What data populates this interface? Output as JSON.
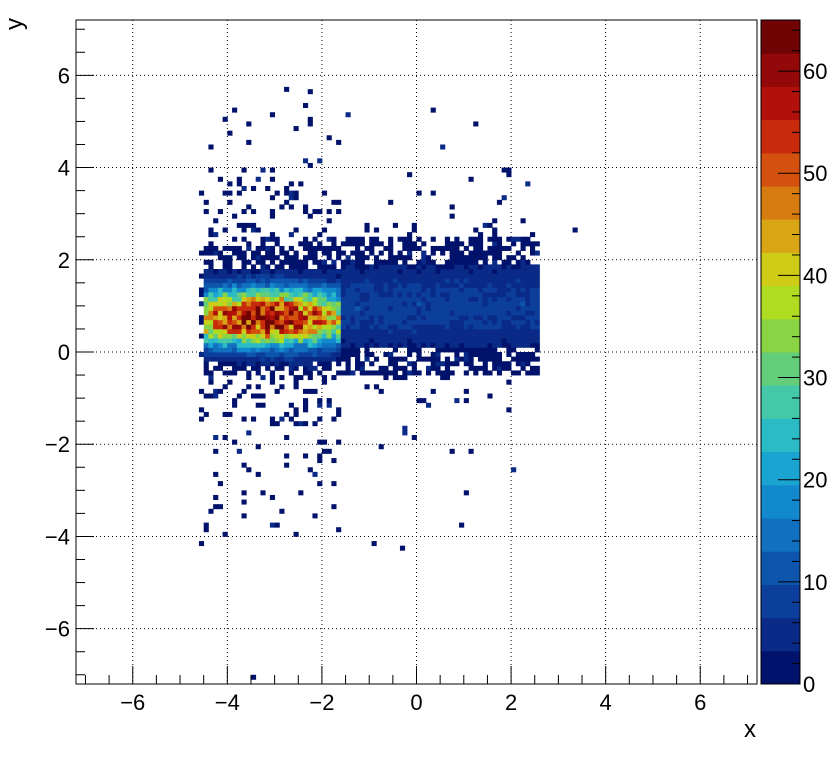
{
  "chart_data": {
    "type": "heatmap",
    "title": "",
    "xlabel": "x",
    "ylabel": "y",
    "xlim": [
      -7.2,
      7.2
    ],
    "ylim": [
      -7.2,
      7.2
    ],
    "x_ticks": [
      "−6",
      "−4",
      "−2",
      "0",
      "2",
      "4",
      "6"
    ],
    "y_ticks": [
      "−6",
      "−4",
      "−2",
      "0",
      "2",
      "4",
      "6"
    ],
    "grid": true,
    "colorbar": {
      "min": 0,
      "max": 65,
      "ticks": [
        "0",
        "10",
        "20",
        "30",
        "40",
        "50",
        "60"
      ],
      "palette": [
        "#00126b",
        "#0a2a87",
        "#0c3e9b",
        "#0e56ad",
        "#1170c0",
        "#1289cc",
        "#1aa4d2",
        "#2bbbc6",
        "#44c8a7",
        "#63cd7a",
        "#88d444",
        "#afdc20",
        "#cfcc18",
        "#d8a514",
        "#d67b10",
        "#d4500e",
        "#c82a0c",
        "#b2100a",
        "#930808",
        "#700404"
      ]
    },
    "distribution": {
      "description_free": true,
      "peak_cluster": {
        "x_range": [
          -4.5,
          -1.6
        ],
        "y_range": [
          0.1,
          1.5
        ],
        "peak_value": 62
      },
      "diffuse_band": {
        "x_range": [
          -1.6,
          2.6
        ],
        "y_range": [
          -0.2,
          2.4
        ],
        "typical_value": 8
      },
      "outer_halo": {
        "x_range": [
          -4.6,
          2.6
        ],
        "y_range": [
          -4.2,
          5.7
        ]
      }
    }
  }
}
